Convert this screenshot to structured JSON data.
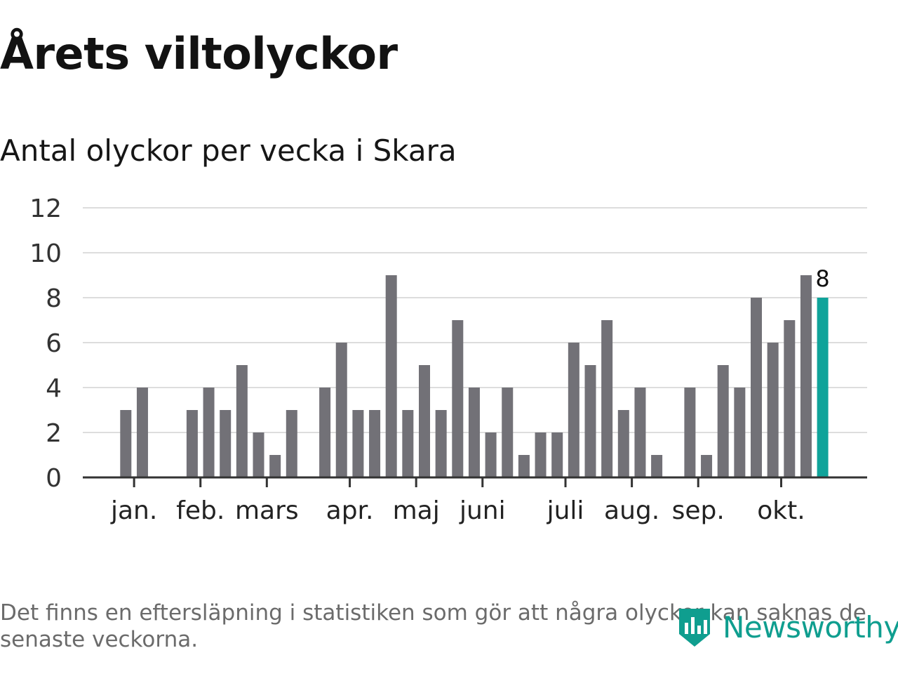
{
  "header": {
    "title": "Årets viltolyckor",
    "subtitle": "Antal olyckor per vecka i Skara"
  },
  "chart_data": {
    "type": "bar",
    "title": "Årets viltolyckor",
    "subtitle": "Antal olyckor per vecka i Skara",
    "xlabel": "",
    "ylabel": "",
    "ylim": [
      0,
      12
    ],
    "yticks": [
      "0",
      "2",
      "4",
      "6",
      "8",
      "10",
      "12"
    ],
    "grid": true,
    "values": [
      0,
      0,
      3,
      4,
      0,
      0,
      3,
      4,
      3,
      5,
      2,
      1,
      3,
      0,
      4,
      6,
      3,
      3,
      9,
      3,
      5,
      3,
      7,
      4,
      2,
      4,
      1,
      2,
      2,
      6,
      5,
      7,
      3,
      4,
      1,
      0,
      4,
      1,
      5,
      4,
      8,
      6,
      7,
      9,
      8
    ],
    "highlight_index": 44,
    "highlight_label": "8",
    "month_labels": [
      {
        "label": "jan.",
        "week": 2.5
      },
      {
        "label": "feb.",
        "week": 6.5
      },
      {
        "label": "mars",
        "week": 10.5
      },
      {
        "label": "apr.",
        "week": 15.5
      },
      {
        "label": "maj",
        "week": 19.5
      },
      {
        "label": "juni",
        "week": 23.5
      },
      {
        "label": "juli",
        "week": 28.5
      },
      {
        "label": "aug.",
        "week": 32.5
      },
      {
        "label": "sep.",
        "week": 36.5
      },
      {
        "label": "okt.",
        "week": 41.5
      }
    ],
    "colors": {
      "bar": "#727177",
      "highlight": "#0fa39a",
      "grid": "#dddddd",
      "axis": "#333333"
    }
  },
  "footer": {
    "note": "Det finns en eftersläpning i statistiken som gör att några olyckor kan saknas de senaste veckorna.",
    "brand": "Newsworthy",
    "brand_color": "#0f9e8f",
    "brand_icon": "bar-chart-shield-icon"
  }
}
